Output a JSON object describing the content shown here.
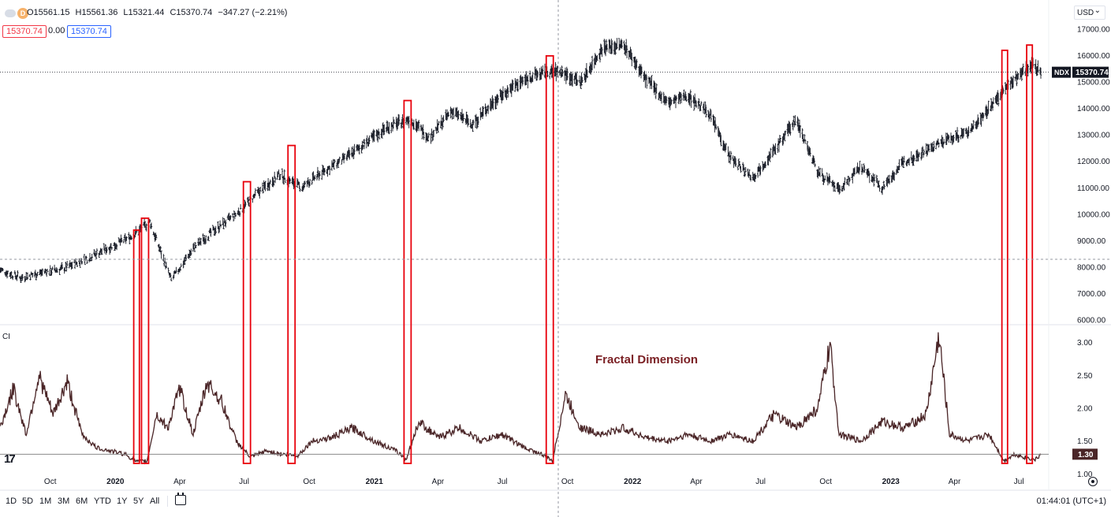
{
  "header": {
    "interval": "D",
    "ohlc": [
      "O15561.15",
      "H15561.36",
      "L15321.44",
      "C15370.74",
      "−347.27 (−2.21%)"
    ],
    "sell_price": "15370.74",
    "spread": "0.00",
    "buy_price": "15370.74",
    "currency": "USD"
  },
  "indicator_label": "CI",
  "logo_text": "17",
  "bottom_bar": {
    "ranges": [
      "1D",
      "5D",
      "1M",
      "3M",
      "6M",
      "YTD",
      "1Y",
      "5Y",
      "All"
    ],
    "clock": "01:44:01 (UTC+1)",
    "calendar_icon": "calendar-goto-icon",
    "settings_icon": "gear-icon"
  },
  "colors": {
    "price_bars": "#131722",
    "fractal_line": "#4a2527",
    "highlight_box": "#e8000b",
    "annotation": "#7a1f23",
    "price_tag_bg": "#131722"
  },
  "chart_data": [
    {
      "type": "line",
      "series": [
        {
          "name": "NDX",
          "x": [
            "2019-07-22",
            "2019-08-20",
            "2019-09-20",
            "2019-10-20",
            "2019-11-20",
            "2019-12-20",
            "2020-01-20",
            "2020-02-19",
            "2020-03-20",
            "2020-04-20",
            "2020-05-20",
            "2020-06-20",
            "2020-07-20",
            "2020-08-20",
            "2020-09-20",
            "2020-10-20",
            "2020-11-20",
            "2020-12-20",
            "2021-01-20",
            "2021-02-20",
            "2021-03-20",
            "2021-04-20",
            "2021-05-20",
            "2021-06-20",
            "2021-07-20",
            "2021-08-20",
            "2021-09-20",
            "2021-10-20",
            "2021-11-20",
            "2021-12-20",
            "2022-01-20",
            "2022-02-20",
            "2022-03-20",
            "2022-04-20",
            "2022-05-20",
            "2022-06-20",
            "2022-07-20",
            "2022-08-20",
            "2022-09-20",
            "2022-10-20",
            "2022-11-20",
            "2022-12-20",
            "2023-01-20",
            "2023-02-20",
            "2023-03-20",
            "2023-04-20",
            "2023-05-20",
            "2023-06-20",
            "2023-07-20",
            "2023-08-01"
          ],
          "values": [
            7900,
            7600,
            7800,
            7950,
            8300,
            8700,
            9100,
            9700,
            7500,
            8700,
            9400,
            10000,
            10800,
            11500,
            11000,
            11600,
            12100,
            12700,
            13300,
            13600,
            12900,
            13900,
            13400,
            14300,
            14900,
            15300,
            15400,
            15000,
            16300,
            16400,
            15100,
            14200,
            14500,
            13800,
            12100,
            11400,
            12400,
            13600,
            11600,
            10900,
            11800,
            11000,
            12000,
            12400,
            12800,
            13100,
            14000,
            15000,
            15700,
            15370.74
          ]
        }
      ],
      "y_axis_ticks": [
        "17000.00",
        "16000.00",
        "15000.00",
        "14000.00",
        "13000.00",
        "12000.00",
        "11000.00",
        "10000.00",
        "9000.00",
        "8000.00",
        "7000.00",
        "6000.00"
      ],
      "ylim": [
        6000,
        17000
      ],
      "last_value_tag": {
        "label": "NDX",
        "value": "15370.74"
      },
      "highlight_periods": [
        {
          "start": "2020-01-27",
          "end": "2020-02-04",
          "ymin": 9150,
          "ymax": 9400
        },
        {
          "start": "2020-02-07",
          "end": "2020-02-17",
          "ymin": 9170,
          "ymax": 9850
        },
        {
          "start": "2020-06-30",
          "end": "2020-07-10",
          "ymin": 9800,
          "ymax": 11230
        },
        {
          "start": "2020-09-01",
          "end": "2020-09-11",
          "ymin": 10550,
          "ymax": 12600
        },
        {
          "start": "2021-02-12",
          "end": "2021-02-22",
          "ymin": 12850,
          "ymax": 14300
        },
        {
          "start": "2021-09-01",
          "end": "2021-09-11",
          "ymin": 14800,
          "ymax": 15990
        },
        {
          "start": "2023-06-07",
          "end": "2023-06-15",
          "ymin": 14000,
          "ymax": 16200
        },
        {
          "start": "2023-07-12",
          "end": "2023-07-20",
          "ymin": 14800,
          "ymax": 16400
        }
      ]
    },
    {
      "type": "line",
      "annotation": "Fractal Dimension",
      "series": [
        {
          "name": "CI",
          "x": [
            "2019-07-22",
            "2019-08-10",
            "2019-08-28",
            "2019-09-15",
            "2019-10-05",
            "2019-10-25",
            "2019-11-15",
            "2019-12-05",
            "2019-12-25",
            "2020-01-15",
            "2020-02-01",
            "2020-02-15",
            "2020-02-28",
            "2020-03-15",
            "2020-04-01",
            "2020-04-20",
            "2020-05-10",
            "2020-05-30",
            "2020-06-20",
            "2020-07-10",
            "2020-08-01",
            "2020-08-25",
            "2020-09-15",
            "2020-10-05",
            "2020-11-01",
            "2020-12-01",
            "2021-01-01",
            "2021-02-01",
            "2021-02-15",
            "2021-03-05",
            "2021-04-01",
            "2021-05-01",
            "2021-06-01",
            "2021-07-01",
            "2021-08-01",
            "2021-08-25",
            "2021-09-10",
            "2021-09-28",
            "2021-10-20",
            "2021-11-20",
            "2021-12-20",
            "2022-01-20",
            "2022-02-20",
            "2022-03-20",
            "2022-04-20",
            "2022-05-20",
            "2022-06-20",
            "2022-07-20",
            "2022-08-20",
            "2022-09-20",
            "2022-10-07",
            "2022-10-20",
            "2022-11-20",
            "2022-12-20",
            "2023-01-20",
            "2023-02-20",
            "2023-03-10",
            "2023-03-25",
            "2023-04-20",
            "2023-05-20",
            "2023-06-10",
            "2023-06-25",
            "2023-07-10",
            "2023-07-25",
            "2023-08-01"
          ],
          "values": [
            1.7,
            2.3,
            1.6,
            2.5,
            1.9,
            2.4,
            1.6,
            1.4,
            1.35,
            1.3,
            1.18,
            1.2,
            1.9,
            1.7,
            2.3,
            1.6,
            2.4,
            2.1,
            1.5,
            1.25,
            1.35,
            1.3,
            1.28,
            1.5,
            1.55,
            1.7,
            1.5,
            1.35,
            1.22,
            1.8,
            1.55,
            1.7,
            1.5,
            1.6,
            1.4,
            1.3,
            1.2,
            2.2,
            1.7,
            1.6,
            1.7,
            1.55,
            1.5,
            1.6,
            1.5,
            1.6,
            1.5,
            1.9,
            1.7,
            2.0,
            2.95,
            1.6,
            1.5,
            1.8,
            1.7,
            1.9,
            3.1,
            1.6,
            1.5,
            1.6,
            1.2,
            1.3,
            1.25,
            1.22,
            1.3
          ]
        }
      ],
      "y_axis_ticks": [
        "3.00",
        "2.50",
        "2.00",
        "1.50",
        "1.00"
      ],
      "ylim": [
        0.98,
        3.2
      ],
      "reference_line": 1.3,
      "last_value_tag": {
        "value": "1.30"
      }
    }
  ],
  "x_axis": {
    "labels": [
      {
        "text": "Oct",
        "date": "2019-10-01",
        "bold": false
      },
      {
        "text": "2020",
        "date": "2020-01-01",
        "bold": true
      },
      {
        "text": "Apr",
        "date": "2020-04-01",
        "bold": false
      },
      {
        "text": "Jul",
        "date": "2020-07-01",
        "bold": false
      },
      {
        "text": "Oct",
        "date": "2020-10-01",
        "bold": false
      },
      {
        "text": "2021",
        "date": "2021-01-01",
        "bold": true
      },
      {
        "text": "Apr",
        "date": "2021-04-01",
        "bold": false
      },
      {
        "text": "Jul",
        "date": "2021-07-01",
        "bold": false
      },
      {
        "text": "Oct",
        "date": "2021-10-01",
        "bold": false
      },
      {
        "text": "2022",
        "date": "2022-01-01",
        "bold": true
      },
      {
        "text": "Apr",
        "date": "2022-04-01",
        "bold": false
      },
      {
        "text": "Jul",
        "date": "2022-07-01",
        "bold": false
      },
      {
        "text": "Oct",
        "date": "2022-10-01",
        "bold": false
      },
      {
        "text": "2023",
        "date": "2023-01-01",
        "bold": true
      },
      {
        "text": "Apr",
        "date": "2023-04-01",
        "bold": false
      },
      {
        "text": "Jul",
        "date": "2023-07-01",
        "bold": false
      }
    ],
    "crosshair_date": "2021-09-18"
  }
}
